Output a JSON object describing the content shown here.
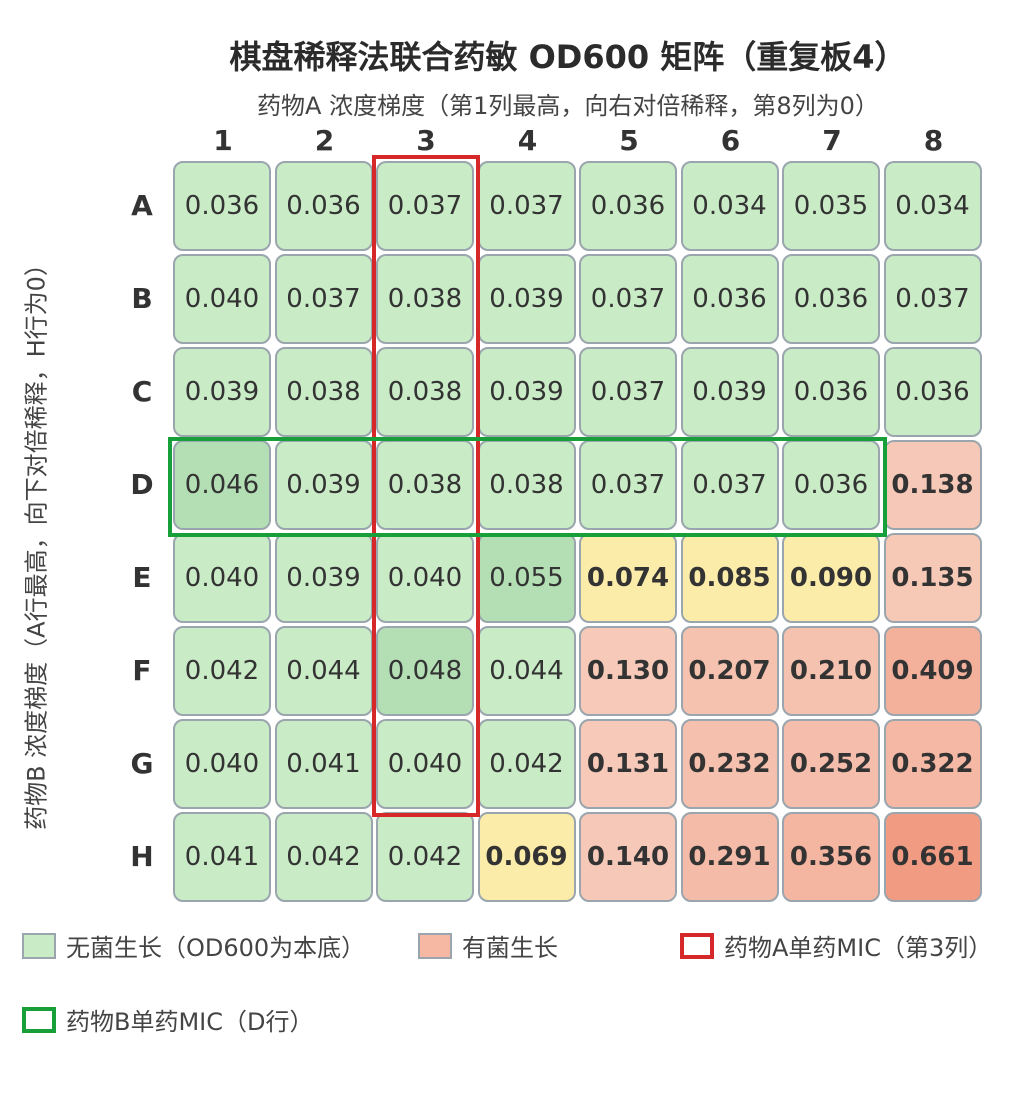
{
  "chart_data": {
    "type": "heatmap",
    "title": "棋盘稀释法联合药敏 OD600 矩阵（重复板4）",
    "subtitle": "药物A 浓度梯度（第1列最高，向右对倍稀释，第8列为0）",
    "ylabel": "药物B 浓度梯度（A行最高，向下对倍稀释，H行为0）",
    "columns": [
      "1",
      "2",
      "3",
      "4",
      "5",
      "6",
      "7",
      "8"
    ],
    "rows": [
      "A",
      "B",
      "C",
      "D",
      "E",
      "F",
      "G",
      "H"
    ],
    "values": [
      [
        "0.036",
        "0.036",
        "0.037",
        "0.037",
        "0.036",
        "0.034",
        "0.035",
        "0.034"
      ],
      [
        "0.040",
        "0.037",
        "0.038",
        "0.039",
        "0.037",
        "0.036",
        "0.036",
        "0.037"
      ],
      [
        "0.039",
        "0.038",
        "0.038",
        "0.039",
        "0.037",
        "0.039",
        "0.036",
        "0.036"
      ],
      [
        "0.046",
        "0.039",
        "0.038",
        "0.038",
        "0.037",
        "0.037",
        "0.036",
        "0.138"
      ],
      [
        "0.040",
        "0.039",
        "0.040",
        "0.055",
        "0.074",
        "0.085",
        "0.090",
        "0.135"
      ],
      [
        "0.042",
        "0.044",
        "0.048",
        "0.044",
        "0.130",
        "0.207",
        "0.210",
        "0.409"
      ],
      [
        "0.040",
        "0.041",
        "0.040",
        "0.042",
        "0.131",
        "0.232",
        "0.252",
        "0.322"
      ],
      [
        "0.041",
        "0.042",
        "0.042",
        "0.069",
        "0.140",
        "0.291",
        "0.356",
        "0.661"
      ]
    ],
    "mic_drug_a_column": "3",
    "mic_drug_b_row": "D",
    "legend": [
      {
        "label": "无菌生长（OD600为本底）",
        "color": "#c9ebc6"
      },
      {
        "label": "有菌生长",
        "color": "#f6b8a2"
      },
      {
        "label": "药物A单药MIC（第3列）",
        "color": "#d62828"
      },
      {
        "label": "药物B单药MIC（D行）",
        "color": "#17a03a"
      }
    ],
    "colors": {
      "no_growth": "#c9ebc6",
      "partial_growth": "#fcecaa",
      "growth_light": "#f6c9b8",
      "growth_dark": "#f19b82",
      "mic_a_outline": "#d62828",
      "mic_b_outline": "#17a03a"
    }
  }
}
